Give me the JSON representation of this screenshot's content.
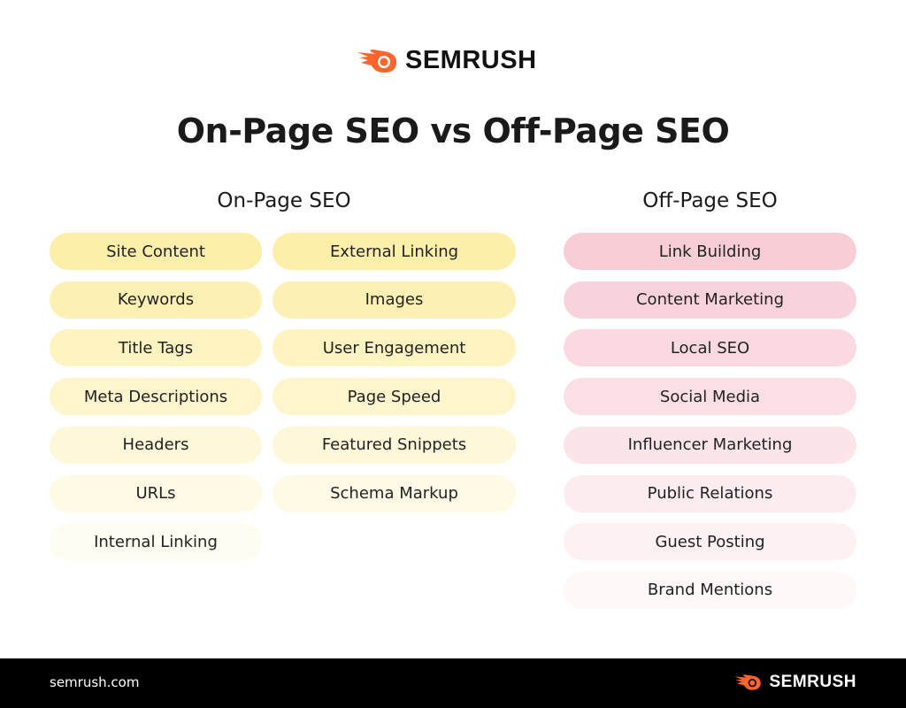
{
  "brand": {
    "name": "SEMRUSH",
    "accent": "#ff642d"
  },
  "title": "On-Page SEO vs Off-Page SEO",
  "on_page": {
    "heading": "On-Page SEO",
    "color": "#fdeea9",
    "column1": [
      "Site Content",
      "Keywords",
      "Title Tags",
      "Meta Descriptions",
      "Headers",
      "URLs",
      "Internal Linking"
    ],
    "column2": [
      "External Linking",
      "Images",
      "User Engagement",
      "Page Speed",
      "Featured Snippets",
      "Schema Markup"
    ]
  },
  "off_page": {
    "heading": "Off-Page SEO",
    "color": "#f8cdd6",
    "items": [
      "Link Building",
      "Content Marketing",
      "Local SEO",
      "Social Media",
      "Influencer Marketing",
      "Public Relations",
      "Guest Posting",
      "Brand Mentions"
    ]
  },
  "footer": {
    "url": "semrush.com"
  }
}
